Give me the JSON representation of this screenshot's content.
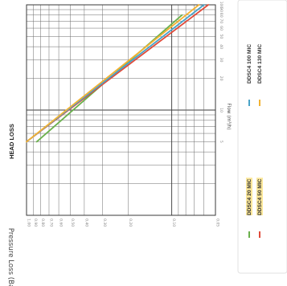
{
  "chart_data": {
    "type": "line",
    "title": "HEAD LOSS",
    "xlabel": "Flow (m³/h)",
    "ylabel": "Pressure Loss (Bar)",
    "x_scale": "log",
    "y_scale": "log",
    "xlim": [
      1,
      100
    ],
    "ylim": [
      0.05,
      1
    ],
    "grid": true,
    "legend_position": "right",
    "x_tick_labels": [
      "5",
      "10",
      "20",
      "30",
      "40",
      "50",
      "60",
      "70",
      "80",
      "90",
      "100"
    ],
    "y_tick_labels": [
      "1.00",
      "0.90",
      "0.80",
      "0.70",
      "0.60",
      "0.50",
      "0.40",
      "0.30",
      "0.20",
      "0.10",
      "0.05"
    ],
    "series": [
      {
        "name": "DDSC4 20 MIC",
        "color": "#6ab04c",
        "x": [
          5,
          80
        ],
        "y": [
          0.85,
          0.085
        ]
      },
      {
        "name": "DDSC4 50 MIC",
        "color": "#e04b3a",
        "x": [
          5,
          100
        ],
        "y": [
          1.0,
          0.056
        ]
      },
      {
        "name": "DDSC4 100 MIC",
        "color": "#4aa3c8",
        "x": [
          5,
          100
        ],
        "y": [
          1.0,
          0.06
        ]
      },
      {
        "name": "DDSC4 130 MIC",
        "color": "#f2b233",
        "x": [
          5,
          100
        ],
        "y": [
          1.0,
          0.065
        ]
      }
    ]
  },
  "legend": {
    "items": [
      {
        "label": "DDSC4 20 MIC",
        "color": "#6ab04c"
      },
      {
        "label": "DDSC4 50 MIC",
        "color": "#e04b3a"
      },
      {
        "label": "DDSC4 100 MIC",
        "color": "#4aa3c8"
      },
      {
        "label": "DDSC4 130 MIC",
        "color": "#f2b233"
      }
    ]
  }
}
